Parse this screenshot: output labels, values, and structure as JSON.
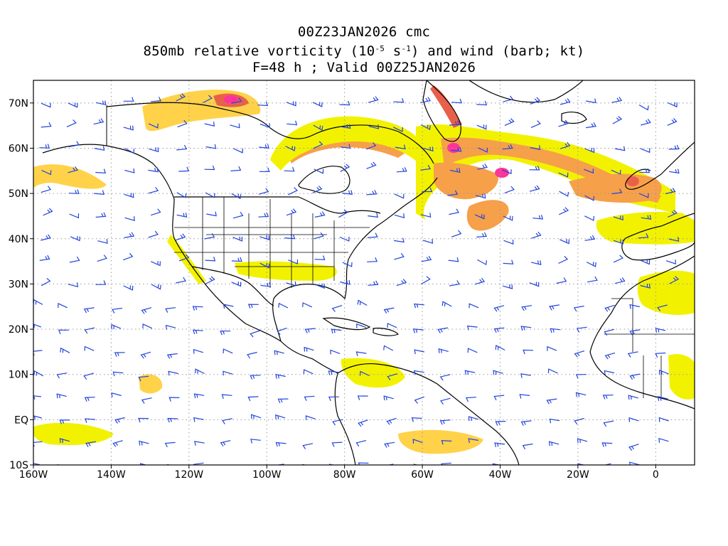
{
  "title": {
    "line1": "00Z23JAN2026 cmc",
    "line2_prefix": "850mb relative vorticity (10",
    "line2_exp1": "-5",
    "line2_mid": " s",
    "line2_exp2": "-1",
    "line2_suffix": ") and wind (barb; kt)",
    "line3": "F=48 h ; Valid 00Z25JAN2026"
  },
  "axes": {
    "x_ticks": [
      {
        "lon": -160,
        "label": "160W"
      },
      {
        "lon": -140,
        "label": "140W"
      },
      {
        "lon": -120,
        "label": "120W"
      },
      {
        "lon": -100,
        "label": "100W"
      },
      {
        "lon": -80,
        "label": "80W"
      },
      {
        "lon": -60,
        "label": "60W"
      },
      {
        "lon": -40,
        "label": "40W"
      },
      {
        "lon": -20,
        "label": "20W"
      },
      {
        "lon": 0,
        "label": "0"
      }
    ],
    "y_ticks": [
      {
        "lat": 70,
        "label": "70N"
      },
      {
        "lat": 60,
        "label": "60N"
      },
      {
        "lat": 50,
        "label": "50N"
      },
      {
        "lat": 40,
        "label": "40N"
      },
      {
        "lat": 30,
        "label": "30N"
      },
      {
        "lat": 20,
        "label": "20N"
      },
      {
        "lat": 10,
        "label": "10N"
      },
      {
        "lat": 0,
        "label": "EQ"
      },
      {
        "lat": -10,
        "label": "10S"
      }
    ],
    "lon_range": [
      -160,
      10
    ],
    "lat_range": [
      -10,
      75
    ],
    "gridlines": "dotted"
  },
  "colors": {
    "vort_low": "#f2f200",
    "vort_mid": "#ffd24a",
    "vort_orange": "#f6a04a",
    "vort_high": "#e8604a",
    "vort_peak": "#ff3399",
    "barb": "#2244dd",
    "coast": "#000000",
    "grid": "#999999"
  }
}
